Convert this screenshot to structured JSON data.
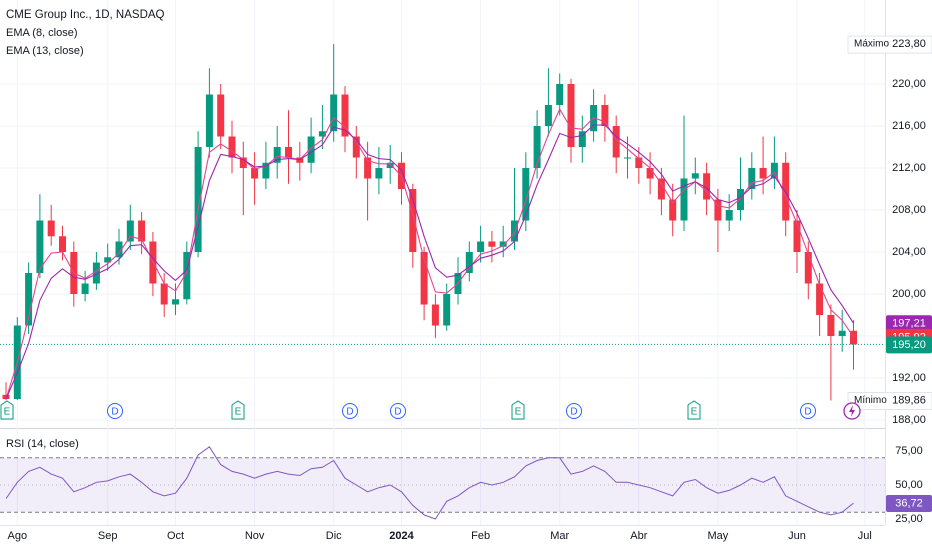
{
  "chart_data": [
    {
      "type": "candlestick",
      "title": "CME Group Inc., 1D, NASDAQ",
      "categories": [
        null,
        "Ago",
        null,
        null,
        null,
        null,
        null,
        null,
        null,
        "Sep",
        null,
        null,
        null,
        null,
        null,
        "Oct",
        null,
        null,
        null,
        null,
        null,
        null,
        "Nov",
        null,
        null,
        null,
        null,
        null,
        null,
        "Dic",
        null,
        null,
        null,
        null,
        null,
        "2024",
        null,
        null,
        null,
        null,
        null,
        null,
        "Feb",
        null,
        null,
        null,
        null,
        null,
        null,
        "Mar",
        null,
        null,
        null,
        null,
        null,
        null,
        "Abr",
        null,
        null,
        null,
        null,
        null,
        null,
        "May",
        null,
        null,
        null,
        null,
        null,
        null,
        "Jun",
        null,
        null,
        null,
        null,
        null,
        "Jul"
      ],
      "open": [
        190.4,
        190,
        197,
        202,
        207,
        205.5,
        204,
        200,
        201,
        203,
        203.5,
        205,
        207,
        205,
        201,
        199,
        199.5,
        204,
        214,
        219,
        215,
        213,
        212,
        211,
        212.5,
        214,
        213,
        212.5,
        215,
        215.5,
        219,
        215,
        213,
        211,
        212,
        212.5,
        210,
        204,
        199,
        197,
        200,
        202,
        204,
        205,
        204.5,
        205,
        207,
        212,
        216,
        218,
        220,
        214,
        215.5,
        218,
        216,
        213,
        213,
        212,
        211,
        209,
        207,
        211,
        211.5,
        209,
        207,
        208,
        210,
        212,
        211,
        212.5,
        207,
        204,
        201,
        198,
        196,
        196.5,
        null
      ],
      "high": [
        191.6,
        197.8,
        203,
        209.5,
        208.5,
        206.5,
        205,
        202.2,
        204,
        204.8,
        206.2,
        208.5,
        207.8,
        205.9,
        202,
        201,
        205,
        215.5,
        221.5,
        220,
        216.5,
        214.5,
        213.5,
        214.5,
        216,
        217.5,
        214.5,
        216.8,
        218,
        223.8,
        219.8,
        216,
        214.5,
        214,
        214.2,
        213.5,
        210.5,
        204.5,
        200,
        201,
        203.5,
        205,
        206.5,
        206,
        206.5,
        212,
        213.5,
        217.5,
        221.5,
        221,
        220.5,
        217,
        219.5,
        219,
        217,
        215,
        214,
        213.5,
        212,
        210.5,
        217,
        213,
        212.5,
        210,
        209.5,
        213,
        213.5,
        215,
        215,
        213.5,
        208,
        205,
        202,
        199,
        198.5,
        197.5,
        null
      ],
      "low": [
        189.9,
        189.9,
        196.2,
        201.5,
        204.6,
        203.2,
        198.8,
        199.3,
        200.4,
        202.2,
        202.8,
        204.2,
        203.8,
        199.8,
        197.8,
        198,
        199,
        203.5,
        213,
        213.8,
        211.5,
        207.5,
        208.5,
        210,
        211,
        210.5,
        210.8,
        211.5,
        213.8,
        214.5,
        213.5,
        211,
        207,
        209.5,
        210.5,
        208.5,
        202.5,
        197.5,
        195.8,
        196.5,
        199,
        201.2,
        203,
        203,
        203.5,
        204.2,
        206,
        211,
        215,
        217,
        212.5,
        212.5,
        214.5,
        214.5,
        211.5,
        211,
        210.5,
        209.5,
        207.5,
        205.5,
        206,
        209.5,
        207.5,
        204,
        206,
        207,
        209,
        209.5,
        210,
        205.5,
        202,
        199.5,
        196,
        189.86,
        194.5,
        192.8,
        null
      ],
      "close": [
        190,
        197,
        202,
        207,
        205.5,
        204,
        200,
        201,
        203,
        203.5,
        205,
        207,
        205,
        201,
        199,
        199.5,
        204,
        214,
        219,
        215,
        213,
        212,
        211,
        212.5,
        214,
        213,
        212.5,
        215,
        215.5,
        219,
        215,
        213,
        211,
        212,
        212.5,
        210,
        204,
        199,
        197,
        200,
        202,
        204,
        205,
        204.5,
        205,
        207,
        212,
        216,
        218,
        220,
        214,
        215.5,
        218,
        216,
        213,
        213,
        212,
        211,
        209,
        207,
        211,
        211.5,
        209,
        207,
        208,
        210,
        212,
        211,
        212.5,
        207,
        204,
        201,
        198,
        196,
        196.5,
        195.2,
        null
      ],
      "up_color": "#089981",
      "down_color": "#f23645",
      "series": [
        {
          "name": "EMA (8, close)",
          "color": "#e0468f",
          "values": [
            190,
            193.5,
            197.8,
            202.4,
            203.9,
            204,
            202,
            201.5,
            202.2,
            202.9,
            203.9,
            205.5,
            205.2,
            203.1,
            201,
            200.3,
            202.1,
            208.1,
            213.5,
            214.3,
            213.6,
            212.8,
            211.9,
            212.2,
            213.1,
            213,
            212.8,
            213.9,
            214.7,
            216.8,
            215.9,
            214.5,
            212.7,
            212.4,
            212.4,
            211.2,
            207.6,
            203.3,
            200.2,
            200.1,
            201,
            202.5,
            203.8,
            204.1,
            204.6,
            205.8,
            208.9,
            212.4,
            215.2,
            217.6,
            215.8,
            215.7,
            216.8,
            216.4,
            214.7,
            213.8,
            212.9,
            212,
            210.5,
            208.7,
            209.9,
            210.7,
            209.8,
            208.4,
            208.2,
            209.1,
            210.6,
            210.8,
            211.6,
            209.3,
            206.7,
            203.8,
            200.9,
            198.5,
            197.5,
            195.92,
            null
          ]
        },
        {
          "name": "EMA (13, close)",
          "color": "#9c27b0",
          "values": [
            190,
            192.5,
            195.3,
            199.4,
            201.5,
            202.4,
            201.6,
            201.4,
            201.9,
            202.4,
            203.3,
            204.6,
            204.7,
            203.4,
            202.2,
            201.3,
            202.3,
            206.4,
            210.8,
            213.3,
            213.1,
            212.8,
            212.1,
            212.2,
            212.8,
            212.9,
            212.8,
            213.5,
            214.2,
            215.9,
            215.6,
            214.7,
            213.3,
            212.9,
            212.8,
            211.8,
            209,
            205.5,
            202.5,
            201.6,
            201.8,
            202.6,
            203.4,
            203.7,
            204.1,
            205,
            207.5,
            210.4,
            212.8,
            215.3,
            214.9,
            215.1,
            216.1,
            216.1,
            215,
            214.3,
            213.5,
            212.6,
            211.4,
            209.8,
            210.3,
            210.7,
            210.1,
            209,
            208.7,
            209.2,
            210.2,
            210.5,
            211.2,
            209.7,
            207.7,
            205.3,
            202.8,
            200.4,
            198.9,
            197.21,
            null
          ]
        }
      ],
      "ylim": [
        187.24,
        228
      ],
      "yticks": [
        {
          "value": 188,
          "label": "188,00"
        },
        {
          "value": 192,
          "label": "192,00"
        },
        {
          "value": 196,
          "label": "196,00"
        },
        {
          "value": 200,
          "label": "200,00"
        },
        {
          "value": 204,
          "label": "204,00"
        },
        {
          "value": 208,
          "label": "208,00"
        },
        {
          "value": 212,
          "label": "212,00"
        },
        {
          "value": 216,
          "label": "216,00"
        },
        {
          "value": 220,
          "label": "220,00"
        }
      ],
      "badges": [
        {
          "value": 197.21,
          "label": "197,21",
          "color": "#9c27b0"
        },
        {
          "value": 195.92,
          "label": "195,92",
          "color": "#f23645"
        },
        {
          "value": 195.2,
          "label": "195,20",
          "color": "#089981"
        }
      ],
      "max": {
        "name": "Máximo",
        "value": 223.8,
        "label": "223,80"
      },
      "min": {
        "name": "Mínimo",
        "value": 189.86,
        "label": "189,86"
      },
      "events": [
        "E",
        "D",
        "E",
        "D",
        "D",
        "E",
        "D",
        "E",
        "D"
      ]
    },
    {
      "type": "line",
      "title": "RSI (14, close)",
      "series": [
        {
          "name": "RSI",
          "color": "#7e57c2",
          "values": [
            40,
            52,
            60,
            63,
            58,
            55,
            45,
            48,
            52,
            53,
            56,
            58,
            52,
            45,
            42,
            44,
            55,
            72,
            78,
            65,
            60,
            58,
            55,
            58,
            60,
            58,
            57,
            62,
            63,
            68,
            55,
            50,
            45,
            48,
            50,
            45,
            35,
            28,
            25,
            38,
            42,
            48,
            52,
            50,
            52,
            56,
            64,
            68,
            70,
            70,
            58,
            60,
            64,
            60,
            52,
            52,
            50,
            48,
            45,
            42,
            52,
            54,
            48,
            44,
            46,
            50,
            55,
            52,
            56,
            42,
            38,
            34,
            30,
            28,
            30,
            36.72,
            null
          ]
        }
      ],
      "ylim": [
        20.6,
        90.4
      ],
      "yticks": [
        {
          "value": 25,
          "label": "25,00"
        },
        {
          "value": 50,
          "label": "50,00"
        },
        {
          "value": 75,
          "label": "75,00"
        }
      ],
      "band": [
        30,
        70
      ],
      "badge": {
        "value": 36.72,
        "label": "36,72"
      }
    }
  ]
}
